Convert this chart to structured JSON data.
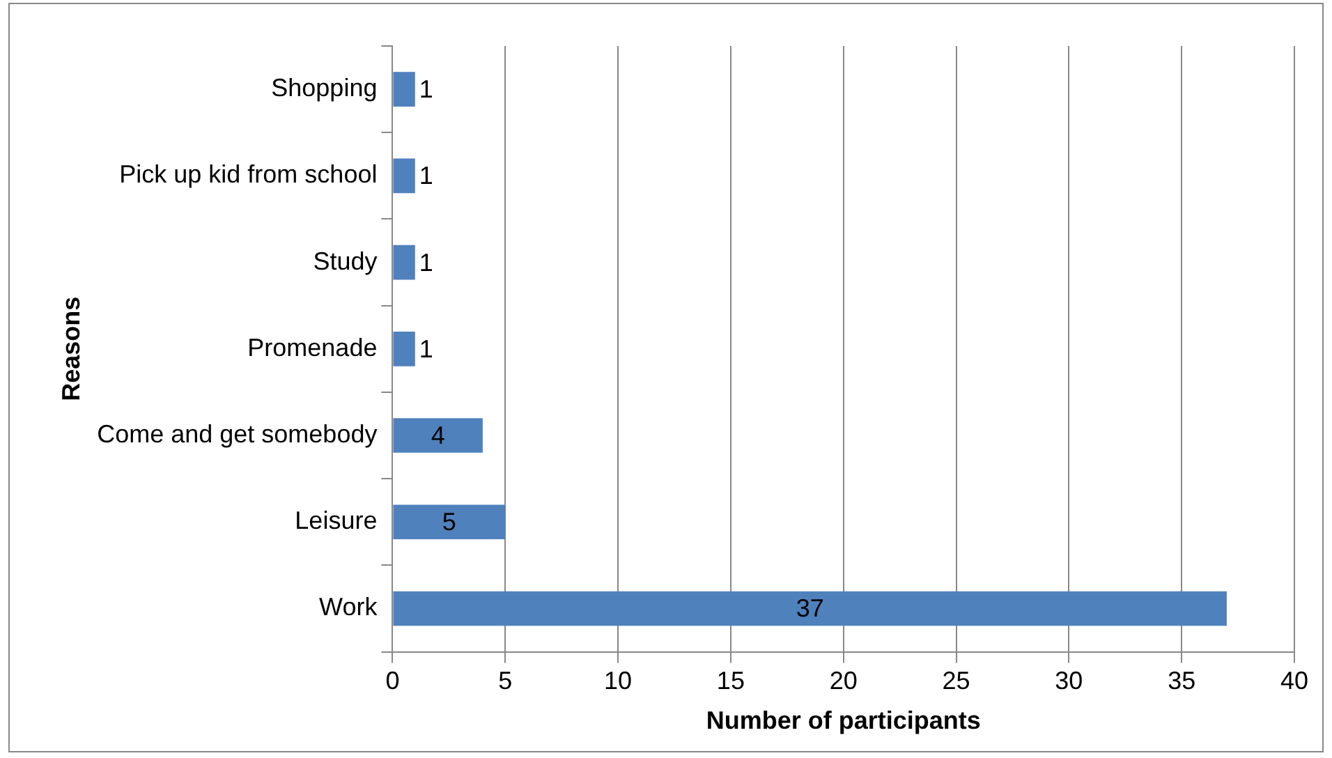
{
  "chart_data": {
    "type": "bar",
    "orientation": "horizontal",
    "xlabel": "Number of participants",
    "ylabel": "Reasons",
    "categories": [
      "Shopping",
      "Pick up kid from school",
      "Study",
      "Promenade",
      "Come and get somebody",
      "Leisure",
      "Work"
    ],
    "values": [
      1,
      1,
      1,
      1,
      4,
      5,
      37
    ],
    "color": "#4f81bd",
    "xlim": [
      0,
      40
    ],
    "xticks": [
      0,
      5,
      10,
      15,
      20,
      25,
      30,
      35,
      40
    ],
    "grid": "x",
    "legend": false,
    "data_labels": true
  }
}
